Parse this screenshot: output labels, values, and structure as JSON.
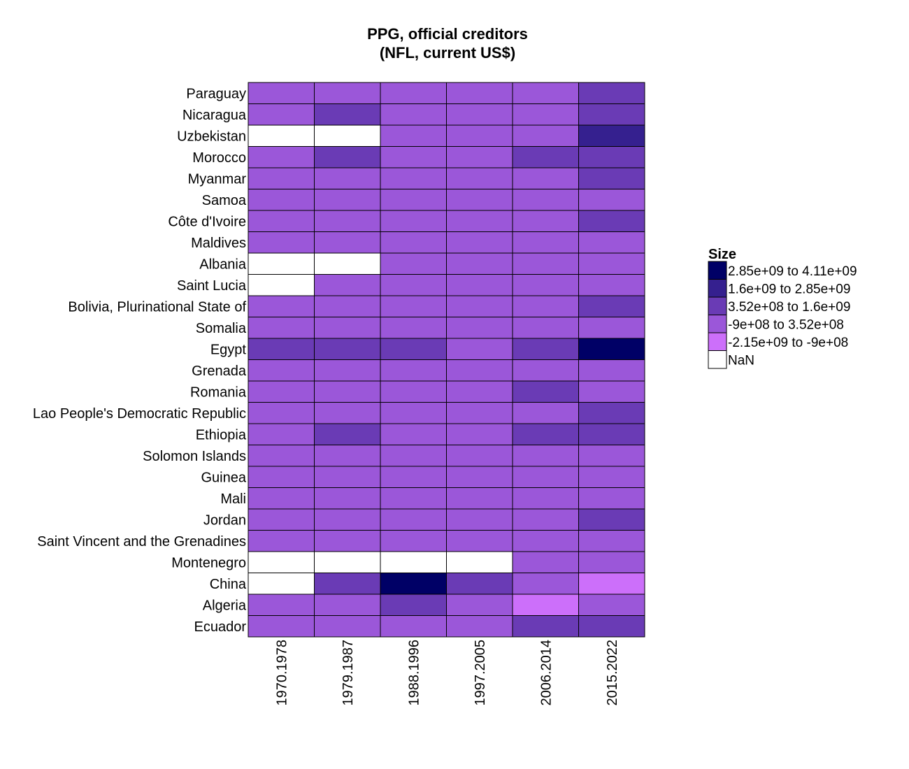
{
  "chart_data": {
    "type": "heatmap",
    "title": [
      "PPG, official creditors",
      "(NFL, current US$)"
    ],
    "rows": [
      "Paraguay",
      "Nicaragua",
      "Uzbekistan",
      "Morocco",
      "Myanmar",
      "Samoa",
      "Côte d'Ivoire",
      "Maldives",
      "Albania",
      "Saint Lucia",
      "Bolivia, Plurinational State of",
      "Somalia",
      "Egypt",
      "Grenada",
      "Romania",
      "Lao People's Democratic Republic",
      "Ethiopia",
      "Solomon Islands",
      "Guinea",
      "Mali",
      "Jordan",
      "Saint Vincent and the Grenadines",
      "Montenegro",
      "China",
      "Algeria",
      "Ecuador"
    ],
    "columns": [
      "1970.1978",
      "1979.1987",
      "1988.1996",
      "1997.2005",
      "2006.2014",
      "2015.2022"
    ],
    "cells": [
      [
        3,
        3,
        3,
        3,
        3,
        2
      ],
      [
        3,
        2,
        3,
        3,
        3,
        2
      ],
      [
        5,
        5,
        3,
        3,
        3,
        1
      ],
      [
        3,
        2,
        3,
        3,
        2,
        2
      ],
      [
        3,
        3,
        3,
        3,
        3,
        2
      ],
      [
        3,
        3,
        3,
        3,
        3,
        3
      ],
      [
        3,
        3,
        3,
        3,
        3,
        2
      ],
      [
        3,
        3,
        3,
        3,
        3,
        3
      ],
      [
        5,
        5,
        3,
        3,
        3,
        3
      ],
      [
        5,
        3,
        3,
        3,
        3,
        3
      ],
      [
        3,
        3,
        3,
        3,
        3,
        2
      ],
      [
        3,
        3,
        3,
        3,
        3,
        3
      ],
      [
        2,
        2,
        2,
        3,
        2,
        0
      ],
      [
        3,
        3,
        3,
        3,
        3,
        3
      ],
      [
        3,
        3,
        3,
        3,
        2,
        3
      ],
      [
        3,
        3,
        3,
        3,
        3,
        2
      ],
      [
        3,
        2,
        3,
        3,
        2,
        2
      ],
      [
        3,
        3,
        3,
        3,
        3,
        3
      ],
      [
        3,
        3,
        3,
        3,
        3,
        3
      ],
      [
        3,
        3,
        3,
        3,
        3,
        3
      ],
      [
        3,
        3,
        3,
        3,
        3,
        2
      ],
      [
        3,
        3,
        3,
        3,
        3,
        3
      ],
      [
        5,
        5,
        5,
        5,
        3,
        3
      ],
      [
        5,
        2,
        0,
        2,
        3,
        4
      ],
      [
        3,
        3,
        2,
        3,
        4,
        3
      ],
      [
        3,
        3,
        3,
        3,
        2,
        2
      ]
    ],
    "legend": {
      "title": "Size",
      "placement": "right",
      "bins": [
        {
          "label": "2.85e+09 to 4.11e+09",
          "color": "#000066"
        },
        {
          "label": "1.6e+09 to 2.85e+09",
          "color": "#35208f"
        },
        {
          "label": "3.52e+08 to 1.6e+09",
          "color": "#6a3bb5"
        },
        {
          "label": "-9e+08 to 3.52e+08",
          "color": "#9b57d9"
        },
        {
          "label": "-2.15e+09 to -9e+08",
          "color": "#cc6ffa"
        },
        {
          "label": "NaN",
          "color": "#ffffff"
        }
      ]
    },
    "grid": true
  }
}
